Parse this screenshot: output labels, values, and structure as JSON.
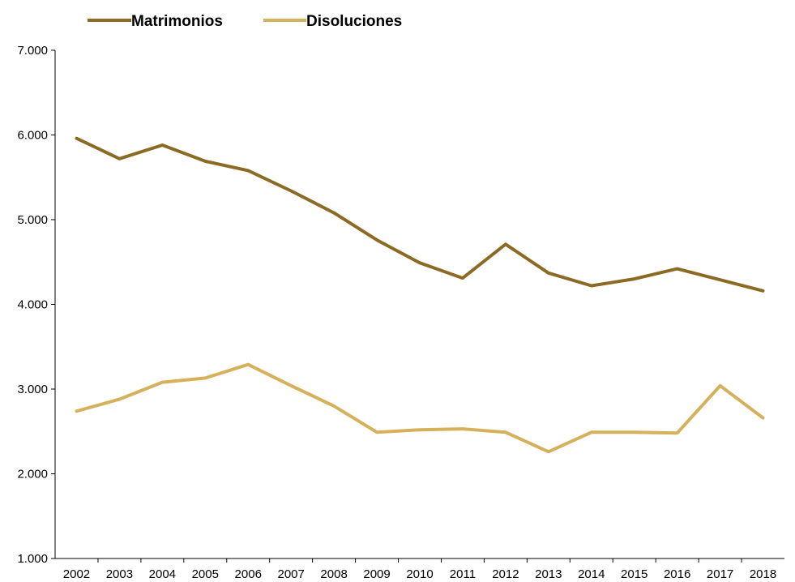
{
  "chart_data": {
    "type": "line",
    "title": "",
    "xlabel": "",
    "ylabel": "",
    "x": [
      "2002",
      "2003",
      "2004",
      "2005",
      "2006",
      "2007",
      "2008",
      "2009",
      "2010",
      "2011",
      "2012",
      "2013",
      "2014",
      "2015",
      "2016",
      "2017",
      "2018"
    ],
    "ylim": [
      1000,
      7000
    ],
    "yticks": [
      1000,
      2000,
      3000,
      4000,
      5000,
      6000,
      7000
    ],
    "ytick_labels": [
      "1.000",
      "2.000",
      "3.000",
      "4.000",
      "5.000",
      "6.000",
      "7.000"
    ],
    "grid": false,
    "legend_position": "top-left",
    "series": [
      {
        "name": "Matrimonios",
        "color": "#8B6B23",
        "values": [
          5960,
          5720,
          5880,
          5690,
          5580,
          5340,
          5080,
          4760,
          4490,
          4310,
          4710,
          4370,
          4220,
          4300,
          4420,
          4290,
          4160
        ]
      },
      {
        "name": "Disoluciones",
        "color": "#D4B15A",
        "values": [
          2740,
          2880,
          3080,
          3130,
          3290,
          3040,
          2800,
          2490,
          2520,
          2530,
          2490,
          2260,
          2490,
          2490,
          2480,
          3040,
          2660
        ]
      }
    ]
  }
}
